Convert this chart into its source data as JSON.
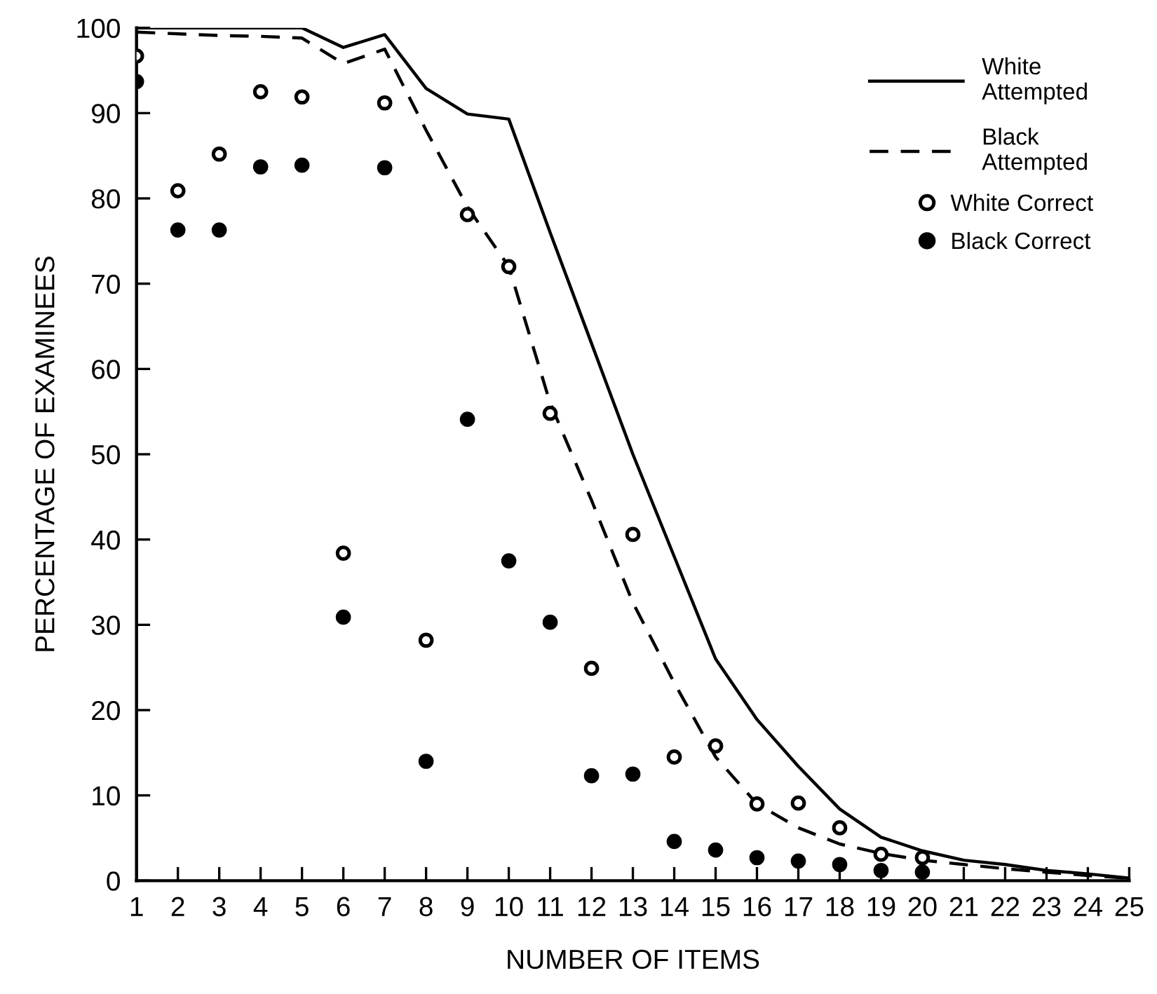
{
  "chart_data": {
    "type": "line",
    "xlabel": "NUMBER OF ITEMS",
    "ylabel": "PERCENTAGE OF EXAMINEES",
    "x": [
      1,
      2,
      3,
      4,
      5,
      6,
      7,
      8,
      9,
      10,
      11,
      12,
      13,
      14,
      15,
      16,
      17,
      18,
      19,
      20,
      21,
      22,
      23,
      24,
      25
    ],
    "xlim": [
      1,
      25
    ],
    "xticks": [
      1,
      2,
      3,
      4,
      5,
      6,
      7,
      8,
      9,
      10,
      11,
      12,
      13,
      14,
      15,
      16,
      17,
      18,
      19,
      20,
      21,
      22,
      23,
      24,
      25
    ],
    "ylim": [
      0,
      100
    ],
    "yticks": [
      0,
      10,
      20,
      30,
      40,
      50,
      60,
      70,
      80,
      90,
      100
    ],
    "grid": false,
    "legend": "top right",
    "series": [
      {
        "name": "White\nAttempted",
        "line_style": "solid",
        "color": "#000000",
        "values": [
          100,
          100,
          100,
          100,
          100,
          97.7,
          99.2,
          92.9,
          89.9,
          89.3,
          76,
          63,
          50,
          38,
          26,
          18.9,
          13.4,
          8.4,
          5.1,
          3.5,
          2.4,
          1.9,
          1.2,
          0.8,
          0.3
        ]
      },
      {
        "name": "Black\nAttempted",
        "line_style": "dashed",
        "color": "#000000",
        "values": [
          99.5,
          99.3,
          99.1,
          99,
          98.8,
          95.8,
          97.5,
          88,
          79,
          72,
          56,
          44.6,
          32.6,
          23.2,
          14.5,
          9,
          6.2,
          4.3,
          3.2,
          2.4,
          1.9,
          1.4,
          1,
          0.6,
          0.3
        ]
      },
      {
        "name": "White Correct",
        "type": "scatter",
        "marker": "circle",
        "color": "#ffffff",
        "x": [
          1,
          2,
          3,
          4,
          5,
          6,
          7,
          8,
          9,
          10,
          11,
          12,
          13,
          14,
          15,
          16,
          17,
          18,
          19,
          20
        ],
        "values": [
          96.7,
          80.9,
          85.2,
          92.5,
          91.9,
          38.4,
          91.2,
          28.2,
          78.1,
          72,
          54.8,
          24.9,
          40.6,
          14.5,
          15.8,
          9,
          9.1,
          6.2,
          3.1,
          2.7
        ]
      },
      {
        "name": "Black Correct",
        "type": "scatter",
        "marker": "circle",
        "color": "#000000",
        "x": [
          1,
          2,
          3,
          4,
          5,
          6,
          7,
          8,
          9,
          10,
          11,
          12,
          13,
          14,
          15,
          16,
          17,
          18,
          19,
          20
        ],
        "values": [
          93.7,
          76.3,
          76.3,
          83.7,
          83.9,
          30.9,
          83.6,
          14,
          54.1,
          37.5,
          30.3,
          12.3,
          12.5,
          4.6,
          3.6,
          2.7,
          2.3,
          1.9,
          1.2,
          1
        ]
      }
    ]
  }
}
